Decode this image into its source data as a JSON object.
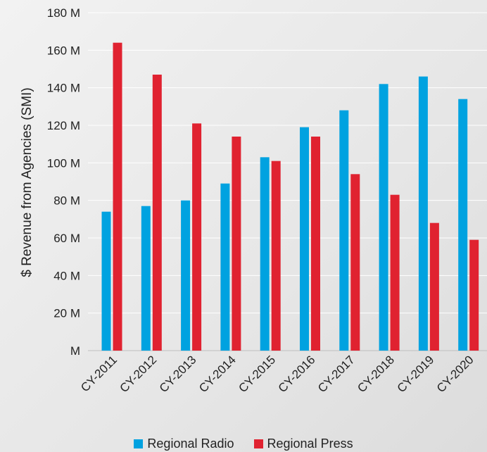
{
  "chart_data": {
    "type": "bar",
    "title": "",
    "xlabel": "",
    "ylabel": "$ Revenue from Agencies (SMI)",
    "categories": [
      "CY-2011",
      "CY-2012",
      "CY-2013",
      "CY-2014",
      "CY-2015",
      "CY-2016",
      "CY-2017",
      "CY-2018",
      "CY-2019",
      "CY-2020"
    ],
    "series": [
      {
        "name": "Regional Radio",
        "color": "#00a2e0",
        "values": [
          74,
          77,
          80,
          89,
          103,
          119,
          128,
          142,
          146,
          134
        ]
      },
      {
        "name": "Regional Press",
        "color": "#e02230",
        "values": [
          164,
          147,
          121,
          114,
          101,
          114,
          94,
          83,
          68,
          59
        ]
      }
    ],
    "ylim": [
      0,
      180
    ],
    "yticks": [
      0,
      20,
      40,
      60,
      80,
      100,
      120,
      140,
      160,
      180
    ],
    "ytick_labels": [
      "M",
      "20 M",
      "40 M",
      "60 M",
      "80 M",
      "100 M",
      "120 M",
      "140 M",
      "160 M",
      "180 M"
    ],
    "grid": true,
    "legend": "bottom-center"
  }
}
